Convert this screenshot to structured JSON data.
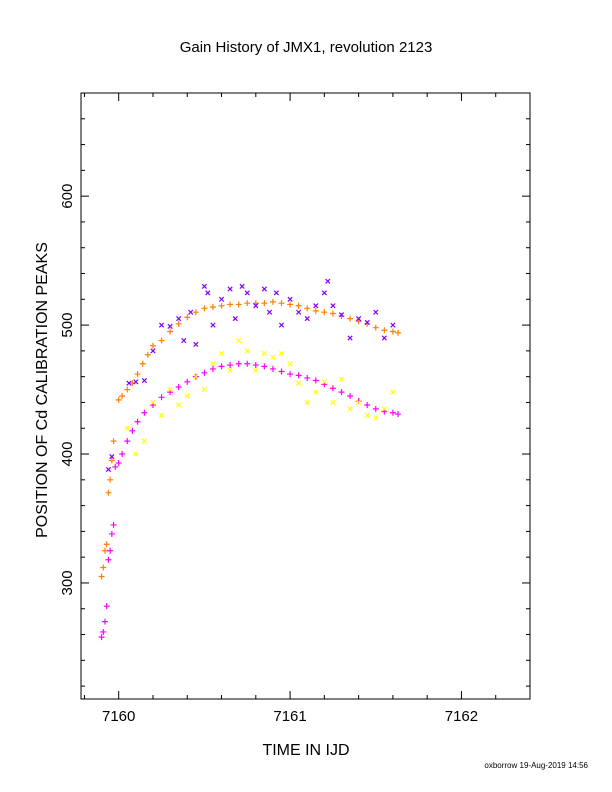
{
  "chart_data": {
    "type": "scatter",
    "title": "Gain History of JMX1, revolution 2123",
    "xlabel": "TIME IN IJD",
    "ylabel": "POSITION OF Cd CALIBRATION PEAKS",
    "xlim": [
      7159.78,
      7162.4
    ],
    "ylim": [
      210,
      680
    ],
    "xticks": [
      7160,
      7161,
      7162
    ],
    "yticks": [
      300,
      400,
      500,
      600
    ],
    "footer": "oxborrow 19-Aug-2019 14:56",
    "grid": false,
    "legend": "none",
    "series": [
      {
        "color": "#ff7f00",
        "marker": "plus",
        "points": [
          [
            7159.9,
            305
          ],
          [
            7159.91,
            312
          ],
          [
            7159.92,
            325
          ],
          [
            7159.93,
            330
          ],
          [
            7159.94,
            370
          ],
          [
            7159.95,
            380
          ],
          [
            7159.96,
            395
          ],
          [
            7159.97,
            410
          ],
          [
            7160.0,
            442
          ],
          [
            7160.02,
            445
          ],
          [
            7160.05,
            450
          ],
          [
            7160.08,
            455
          ],
          [
            7160.11,
            462
          ],
          [
            7160.14,
            470
          ],
          [
            7160.17,
            477
          ],
          [
            7160.2,
            484
          ],
          [
            7160.25,
            488
          ],
          [
            7160.3,
            495
          ],
          [
            7160.35,
            501
          ],
          [
            7160.4,
            506
          ],
          [
            7160.45,
            510
          ],
          [
            7160.5,
            513
          ],
          [
            7160.55,
            514
          ],
          [
            7160.6,
            515
          ],
          [
            7160.65,
            516
          ],
          [
            7160.7,
            516
          ],
          [
            7160.75,
            517
          ],
          [
            7160.8,
            517
          ],
          [
            7160.85,
            517
          ],
          [
            7160.9,
            518
          ],
          [
            7160.95,
            517
          ],
          [
            7161.0,
            516
          ],
          [
            7161.05,
            515
          ],
          [
            7161.1,
            513
          ],
          [
            7161.15,
            511
          ],
          [
            7161.2,
            510
          ],
          [
            7161.25,
            509
          ],
          [
            7161.3,
            507
          ],
          [
            7161.35,
            505
          ],
          [
            7161.4,
            503
          ],
          [
            7161.45,
            501
          ],
          [
            7161.5,
            498
          ],
          [
            7161.55,
            496
          ],
          [
            7161.6,
            495
          ],
          [
            7161.63,
            494
          ]
        ]
      },
      {
        "color": "#7f00ff",
        "marker": "cross",
        "points": [
          [
            7159.94,
            388
          ],
          [
            7159.96,
            398
          ],
          [
            7160.06,
            455
          ],
          [
            7160.1,
            456
          ],
          [
            7160.15,
            457
          ],
          [
            7160.2,
            480
          ],
          [
            7160.25,
            500
          ],
          [
            7160.3,
            499
          ],
          [
            7160.35,
            505
          ],
          [
            7160.38,
            488
          ],
          [
            7160.42,
            510
          ],
          [
            7160.45,
            485
          ],
          [
            7160.5,
            530
          ],
          [
            7160.52,
            525
          ],
          [
            7160.55,
            500
          ],
          [
            7160.6,
            520
          ],
          [
            7160.65,
            528
          ],
          [
            7160.68,
            505
          ],
          [
            7160.72,
            530
          ],
          [
            7160.75,
            525
          ],
          [
            7160.8,
            515
          ],
          [
            7160.85,
            528
          ],
          [
            7160.88,
            510
          ],
          [
            7160.92,
            525
          ],
          [
            7160.95,
            500
          ],
          [
            7161.0,
            520
          ],
          [
            7161.05,
            510
          ],
          [
            7161.1,
            505
          ],
          [
            7161.15,
            515
          ],
          [
            7161.2,
            525
          ],
          [
            7161.22,
            534
          ],
          [
            7161.25,
            515
          ],
          [
            7161.3,
            508
          ],
          [
            7161.35,
            490
          ],
          [
            7161.4,
            505
          ],
          [
            7161.45,
            502
          ],
          [
            7161.5,
            510
          ],
          [
            7161.55,
            490
          ],
          [
            7161.6,
            500
          ]
        ]
      },
      {
        "color": "#ff00ff",
        "marker": "plus",
        "points": [
          [
            7159.9,
            258
          ],
          [
            7159.91,
            262
          ],
          [
            7159.92,
            270
          ],
          [
            7159.93,
            282
          ],
          [
            7159.94,
            318
          ],
          [
            7159.95,
            325
          ],
          [
            7159.96,
            338
          ],
          [
            7159.97,
            345
          ],
          [
            7159.98,
            390
          ],
          [
            7160.0,
            393
          ],
          [
            7160.02,
            400
          ],
          [
            7160.05,
            410
          ],
          [
            7160.08,
            418
          ],
          [
            7160.11,
            425
          ],
          [
            7160.15,
            432
          ],
          [
            7160.2,
            438
          ],
          [
            7160.25,
            444
          ],
          [
            7160.3,
            448
          ],
          [
            7160.35,
            452
          ],
          [
            7160.4,
            456
          ],
          [
            7160.45,
            460
          ],
          [
            7160.5,
            463
          ],
          [
            7160.55,
            466
          ],
          [
            7160.6,
            468
          ],
          [
            7160.65,
            469
          ],
          [
            7160.7,
            470
          ],
          [
            7160.75,
            470
          ],
          [
            7160.8,
            469
          ],
          [
            7160.85,
            468
          ],
          [
            7160.9,
            466
          ],
          [
            7160.95,
            464
          ],
          [
            7161.0,
            462
          ],
          [
            7161.05,
            461
          ],
          [
            7161.1,
            459
          ],
          [
            7161.15,
            457
          ],
          [
            7161.2,
            454
          ],
          [
            7161.25,
            451
          ],
          [
            7161.3,
            448
          ],
          [
            7161.35,
            445
          ],
          [
            7161.4,
            441
          ],
          [
            7161.45,
            438
          ],
          [
            7161.5,
            435
          ],
          [
            7161.55,
            433
          ],
          [
            7161.6,
            432
          ],
          [
            7161.63,
            431
          ]
        ]
      },
      {
        "color": "#ffff00",
        "marker": "cross",
        "points": [
          [
            7160.05,
            420
          ],
          [
            7160.1,
            400
          ],
          [
            7160.15,
            410
          ],
          [
            7160.2,
            440
          ],
          [
            7160.25,
            430
          ],
          [
            7160.3,
            450
          ],
          [
            7160.35,
            438
          ],
          [
            7160.4,
            445
          ],
          [
            7160.45,
            460
          ],
          [
            7160.5,
            450
          ],
          [
            7160.55,
            470
          ],
          [
            7160.6,
            478
          ],
          [
            7160.65,
            465
          ],
          [
            7160.7,
            488
          ],
          [
            7160.75,
            480
          ],
          [
            7160.8,
            465
          ],
          [
            7160.85,
            478
          ],
          [
            7160.9,
            475
          ],
          [
            7160.95,
            478
          ],
          [
            7161.0,
            470
          ],
          [
            7161.05,
            455
          ],
          [
            7161.1,
            440
          ],
          [
            7161.15,
            448
          ],
          [
            7161.2,
            456
          ],
          [
            7161.25,
            440
          ],
          [
            7161.3,
            458
          ],
          [
            7161.35,
            435
          ],
          [
            7161.4,
            440
          ],
          [
            7161.45,
            430
          ],
          [
            7161.5,
            428
          ],
          [
            7161.55,
            435
          ],
          [
            7161.6,
            448
          ]
        ]
      }
    ]
  }
}
